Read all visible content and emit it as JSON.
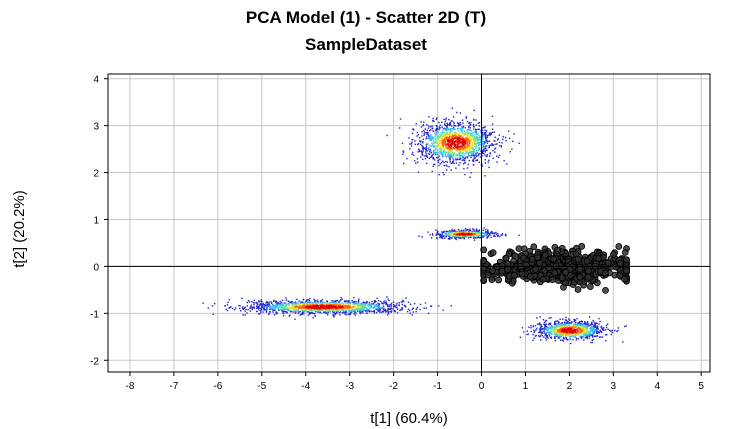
{
  "chart_data": {
    "type": "scatter",
    "title": "PCA Model (1) - Scatter 2D (T)",
    "subtitle": "SampleDataset",
    "xlabel": "t[1] (60.4%)",
    "ylabel": "t[2] (20.2%)",
    "xlim": [
      -8.5,
      5.2
    ],
    "ylim": [
      -2.25,
      4.1
    ],
    "xticks": [
      -8,
      -7,
      -6,
      -5,
      -4,
      -3,
      -2,
      -1,
      0,
      1,
      2,
      3,
      4,
      5
    ],
    "yticks": [
      -2,
      -1,
      0,
      1,
      2,
      3,
      4
    ],
    "grid": true,
    "reference_lines": {
      "x": 0,
      "y": 0
    },
    "series": [
      {
        "name": "density-cluster-top",
        "kind": "density",
        "center": [
          -0.6,
          2.65
        ],
        "spread": [
          0.45,
          0.22
        ],
        "points": 1400
      },
      {
        "name": "density-cluster-middle",
        "kind": "density",
        "center": [
          -0.4,
          0.7
        ],
        "spread": [
          0.35,
          0.04
        ],
        "points": 500
      },
      {
        "name": "density-cluster-left",
        "kind": "density",
        "center": [
          -3.6,
          -0.85
        ],
        "spread": [
          0.9,
          0.07
        ],
        "points": 1500
      },
      {
        "name": "density-cluster-bottom-right",
        "kind": "density",
        "center": [
          2.0,
          -1.35
        ],
        "spread": [
          0.4,
          0.1
        ],
        "points": 900
      },
      {
        "name": "highlighted-samples",
        "kind": "markers",
        "center": [
          1.7,
          0.0
        ],
        "spread": [
          0.85,
          0.17
        ],
        "points": 700,
        "color": "#000000"
      }
    ],
    "colormap": [
      "#2222cc",
      "#2a6ae6",
      "#33c0f0",
      "#66e0a0",
      "#f0e020",
      "#ff6010",
      "#e00000"
    ]
  }
}
